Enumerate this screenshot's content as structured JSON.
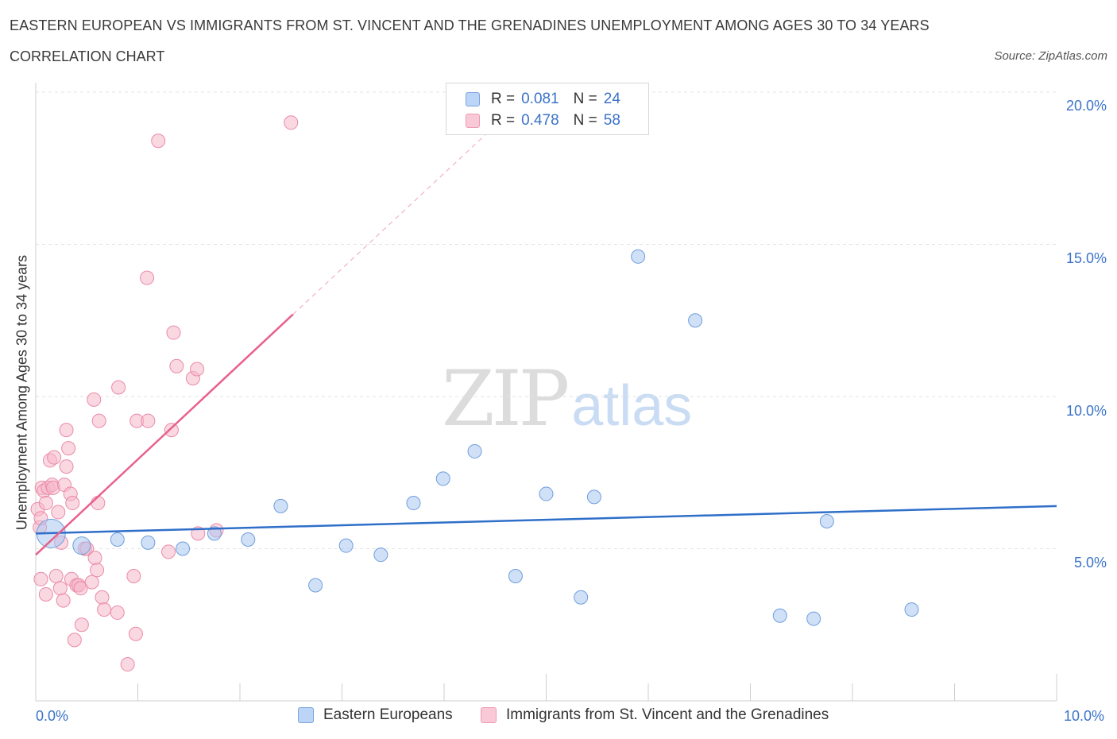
{
  "header": {
    "title": "EASTERN EUROPEAN VS IMMIGRANTS FROM ST. VINCENT AND THE GRENADINES UNEMPLOYMENT AMONG AGES 30 TO 34 YEARS",
    "subtitle": "CORRELATION CHART",
    "source": "Source: ZipAtlas.com"
  },
  "watermark": {
    "zip": "ZIP",
    "atlas": "atlas"
  },
  "legend_top": {
    "rows": [
      {
        "r_label": "R =",
        "r_value": "0.081",
        "n_label": "N =",
        "n_value": "24",
        "color": "#a9c7f0"
      },
      {
        "r_label": "R =",
        "r_value": "0.478",
        "n_label": "N =",
        "n_value": "58",
        "color": "#f6b8cb"
      }
    ]
  },
  "legend_bottom": {
    "items": [
      {
        "label": "Eastern Europeans",
        "color": "#a9c7f0"
      },
      {
        "label": "Immigrants from St. Vincent and the Grenadines",
        "color": "#f6b8cb"
      }
    ]
  },
  "colors": {
    "blue_fill": "#a9c7f0",
    "blue_stroke": "#6f9fdc",
    "blue_line": "#2f6fc9",
    "pink_fill": "#f6b8cb",
    "pink_stroke": "#ea8aa8",
    "pink_line": "#e8618c",
    "grid": "#e3e3e3",
    "tick_text": "#3b73c9"
  },
  "chart_data": {
    "type": "scatter",
    "title": "EASTERN EUROPEAN VS IMMIGRANTS FROM ST. VINCENT AND THE GRENADINES UNEMPLOYMENT AMONG AGES 30 TO 34 YEARS",
    "xlabel": "",
    "ylabel": "Unemployment Among Ages 30 to 34 years",
    "xlim": [
      0,
      10
    ],
    "ylim": [
      0,
      20
    ],
    "x_tick_labels": [
      "0.0%",
      "10.0%"
    ],
    "y_ticks": [
      5,
      10,
      15,
      20
    ],
    "y_tick_labels": [
      "5.0%",
      "10.0%",
      "15.0%",
      "20.0%"
    ],
    "grid": true,
    "legend_position": "top-center",
    "series": [
      {
        "name": "Eastern Europeans",
        "R": 0.081,
        "N": 24,
        "points": [
          [
            0.15,
            5.5
          ],
          [
            0.45,
            5.1
          ],
          [
            0.8,
            5.3
          ],
          [
            1.1,
            5.2
          ],
          [
            1.44,
            5.0
          ],
          [
            1.75,
            5.5
          ],
          [
            2.08,
            5.3
          ],
          [
            2.4,
            6.4
          ],
          [
            2.74,
            3.8
          ],
          [
            3.04,
            5.1
          ],
          [
            3.38,
            4.8
          ],
          [
            3.7,
            6.5
          ],
          [
            3.99,
            7.3
          ],
          [
            4.3,
            8.2
          ],
          [
            4.7,
            4.1
          ],
          [
            5.0,
            6.8
          ],
          [
            5.34,
            3.4
          ],
          [
            5.47,
            6.7
          ],
          [
            5.9,
            14.6
          ],
          [
            6.46,
            12.5
          ],
          [
            7.29,
            2.8
          ],
          [
            7.62,
            2.7
          ],
          [
            7.75,
            5.9
          ],
          [
            8.58,
            3.0
          ]
        ],
        "trend": {
          "x": [
            0,
            10
          ],
          "y": [
            5.5,
            6.4
          ]
        }
      },
      {
        "name": "Immigrants from St. Vincent and the Grenadines",
        "R": 0.478,
        "N": 58,
        "points": [
          [
            0.02,
            6.3
          ],
          [
            0.04,
            5.7
          ],
          [
            0.05,
            6.0
          ],
          [
            0.06,
            7.0
          ],
          [
            0.08,
            6.9
          ],
          [
            0.1,
            6.5
          ],
          [
            0.12,
            7.0
          ],
          [
            0.14,
            7.9
          ],
          [
            0.16,
            7.1
          ],
          [
            0.17,
            7.0
          ],
          [
            0.18,
            8.0
          ],
          [
            0.2,
            4.1
          ],
          [
            0.22,
            6.2
          ],
          [
            0.24,
            3.7
          ],
          [
            0.25,
            5.2
          ],
          [
            0.27,
            3.3
          ],
          [
            0.28,
            7.1
          ],
          [
            0.3,
            7.7
          ],
          [
            0.3,
            8.9
          ],
          [
            0.32,
            8.3
          ],
          [
            0.34,
            6.8
          ],
          [
            0.35,
            4.0
          ],
          [
            0.36,
            6.5
          ],
          [
            0.38,
            2.0
          ],
          [
            0.4,
            3.8
          ],
          [
            0.42,
            3.8
          ],
          [
            0.44,
            3.7
          ],
          [
            0.45,
            2.5
          ],
          [
            0.48,
            5.0
          ],
          [
            0.5,
            5.0
          ],
          [
            0.55,
            3.9
          ],
          [
            0.57,
            9.9
          ],
          [
            0.58,
            4.7
          ],
          [
            0.6,
            4.3
          ],
          [
            0.61,
            6.5
          ],
          [
            0.62,
            9.2
          ],
          [
            0.65,
            3.4
          ],
          [
            0.67,
            3.0
          ],
          [
            0.8,
            2.9
          ],
          [
            0.81,
            10.3
          ],
          [
            0.9,
            1.2
          ],
          [
            0.96,
            4.1
          ],
          [
            0.98,
            2.2
          ],
          [
            0.99,
            9.2
          ],
          [
            1.1,
            9.2
          ],
          [
            1.09,
            13.9
          ],
          [
            1.2,
            18.4
          ],
          [
            1.3,
            4.9
          ],
          [
            1.33,
            8.9
          ],
          [
            1.35,
            12.1
          ],
          [
            1.38,
            11.0
          ],
          [
            1.54,
            10.6
          ],
          [
            1.58,
            10.9
          ],
          [
            1.59,
            5.5
          ],
          [
            1.77,
            5.6
          ],
          [
            2.5,
            19.0
          ],
          [
            0.05,
            4.0
          ],
          [
            0.1,
            3.5
          ]
        ],
        "trend": {
          "x": [
            0,
            2.52
          ],
          "y": [
            4.8,
            12.7
          ]
        },
        "trend_extension": {
          "x": [
            2.52,
            4.5
          ],
          "y": [
            12.7,
            18.9
          ]
        }
      }
    ]
  }
}
